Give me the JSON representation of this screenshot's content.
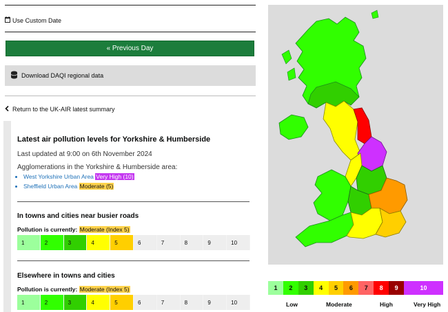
{
  "top": {
    "custom_date_label": "Use Custom Date",
    "previous_day_label": "« Previous Day",
    "download_label": "Download DAQI regional data",
    "return_label": "Return to the UK-AIR latest summary"
  },
  "main": {
    "title": "Latest air pollution levels for Yorkshire & Humberside",
    "updated": "Last updated at 9:00 on 6th November 2024",
    "agglomerations_intro": "Agglomerations in the Yorkshire & Humberside area:",
    "agglomerations": [
      {
        "name": "West Yorkshire Urban Area",
        "badge": "Very High (10)",
        "badge_color": "#c438f0"
      },
      {
        "name": "Sheffield Urban Area",
        "badge": "Moderate (5)",
        "badge_color": "#ffd34d"
      }
    ],
    "sections": [
      {
        "title": "In towns and cities near busier roads",
        "pollution_label": "Pollution is currently:",
        "pollution_value": "Moderate (Index 5)"
      },
      {
        "title": "Elsewhere in towns and cities",
        "pollution_label": "Pollution is currently:",
        "pollution_value": "Moderate (Index 5)"
      }
    ],
    "index_scale": [
      "1",
      "2",
      "3",
      "4",
      "5",
      "6",
      "7",
      "8",
      "9",
      "10"
    ]
  },
  "legend": {
    "indices": [
      "1",
      "2",
      "3",
      "4",
      "5",
      "6",
      "7",
      "8",
      "9",
      "10"
    ],
    "colors": [
      "#9cff9c",
      "#31ff00",
      "#31cf00",
      "#ffff00",
      "#ffcf00",
      "#ff9a00",
      "#ff6464",
      "#ff0000",
      "#990000",
      "#ce30ff"
    ],
    "bands": [
      "Low",
      "Moderate",
      "High",
      "Very High"
    ]
  },
  "colors": {
    "green_button": "#1c7d3c",
    "link": "#1d70b8",
    "very_high": "#c438f0",
    "moderate": "#ffd34d"
  }
}
